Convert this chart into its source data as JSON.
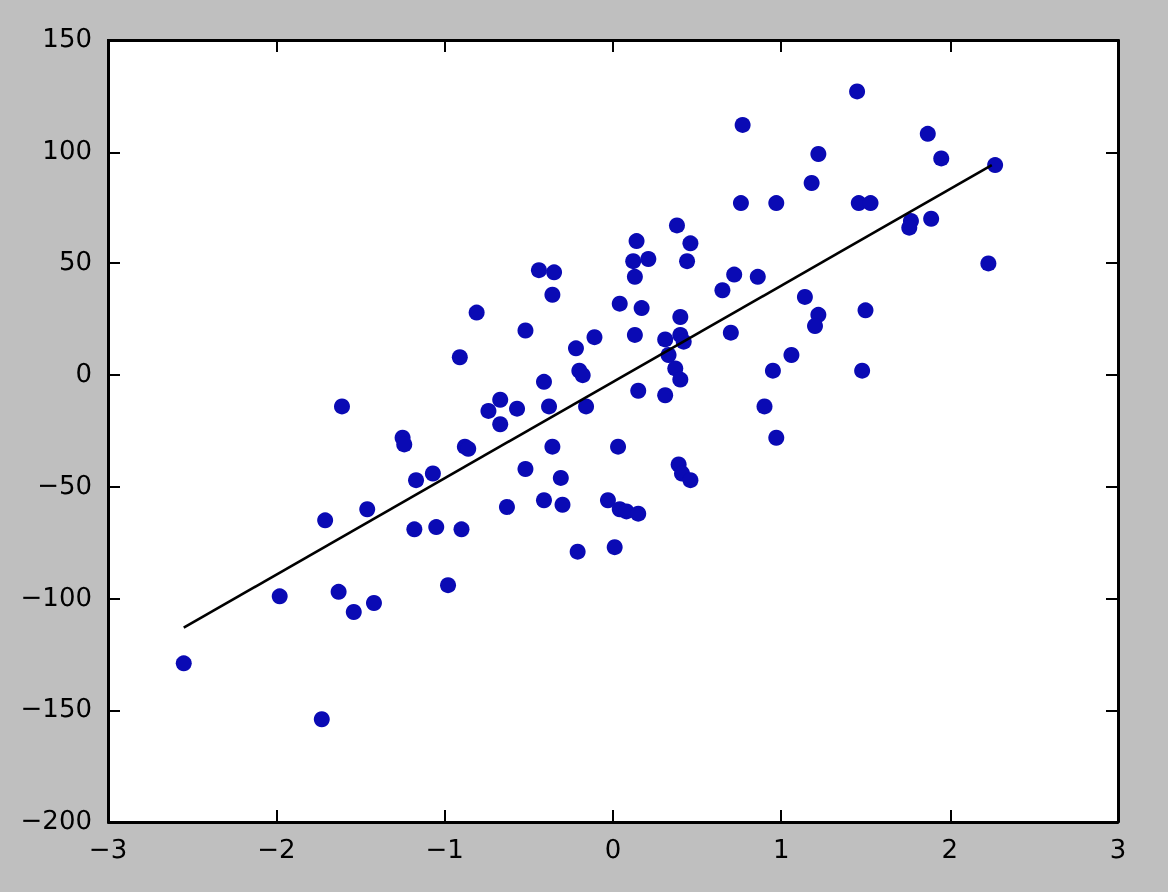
{
  "chart_data": {
    "type": "scatter",
    "xlim": [
      -3,
      3
    ],
    "xticks": [
      -3,
      -2,
      -1,
      0,
      1,
      2,
      3
    ],
    "ylim": [
      -200,
      150
    ],
    "yticks": [
      -200,
      -150,
      -100,
      -50,
      0,
      50,
      100,
      150
    ],
    "grid": false,
    "series": [
      {
        "color": "#0a0ab4",
        "marker": "circle",
        "x": [
          -2.55,
          -1.73,
          -1.98,
          -1.63,
          -1.54,
          -1.42,
          -1.71,
          -1.46,
          -1.61,
          -1.25,
          -1.24,
          -1.17,
          -1.07,
          -1.18,
          -1.05,
          -0.98,
          -0.9,
          -0.88,
          -0.86,
          -0.91,
          -0.81,
          -0.74,
          -0.67,
          -0.67,
          -0.57,
          -0.52,
          -0.63,
          -0.52,
          -0.44,
          -0.35,
          -0.36,
          -0.38,
          -0.41,
          -0.36,
          -0.31,
          -0.41,
          -0.3,
          -0.22,
          -0.2,
          -0.18,
          -0.11,
          -0.16,
          -0.21,
          -0.03,
          0.01,
          0.03,
          0.04,
          0.08,
          0.15,
          0.04,
          0.17,
          0.14,
          0.12,
          0.21,
          0.13,
          0.38,
          0.46,
          0.44,
          0.13,
          0.4,
          0.4,
          0.42,
          0.31,
          0.33,
          0.37,
          0.4,
          0.15,
          0.31,
          0.39,
          0.41,
          0.46,
          0.65,
          0.72,
          0.86,
          0.7,
          0.77,
          0.76,
          0.97,
          0.95,
          1.06,
          0.9,
          0.97,
          1.14,
          1.22,
          1.2,
          1.18,
          1.22,
          1.45,
          1.46,
          1.53,
          1.5,
          1.48,
          1.77,
          1.76,
          1.89,
          1.87,
          1.95,
          2.27,
          2.23
        ],
        "values": [
          -129,
          -154,
          -99,
          -97,
          -106,
          -102,
          -65,
          -60,
          -14,
          -28,
          -31,
          -47,
          -44,
          -69,
          -68,
          -94,
          -69,
          -32,
          -33,
          8,
          28,
          -16,
          -11,
          -22,
          -15,
          -42,
          -59,
          20,
          47,
          46,
          36,
          -14,
          -3,
          -32,
          -46,
          -56,
          -58,
          12,
          2,
          0,
          17,
          -14,
          -79,
          -56,
          -77,
          -32,
          -60,
          -61,
          -62,
          32,
          30,
          60,
          51,
          52,
          44,
          67,
          59,
          51,
          18,
          26,
          18,
          15,
          16,
          9,
          3,
          -2,
          -7,
          -9,
          -40,
          -44,
          -47,
          38,
          45,
          44,
          19,
          112,
          77,
          77,
          2,
          9,
          -14,
          -28,
          35,
          27,
          22,
          86,
          99,
          127,
          77,
          77,
          29,
          2,
          69,
          66,
          70,
          108,
          97,
          94,
          50
        ]
      },
      {
        "type": "line",
        "color": "#000000",
        "marker": "none",
        "line_style": "solid",
        "x": [
          -2.55,
          2.25
        ],
        "values": [
          -113,
          94
        ]
      }
    ]
  }
}
